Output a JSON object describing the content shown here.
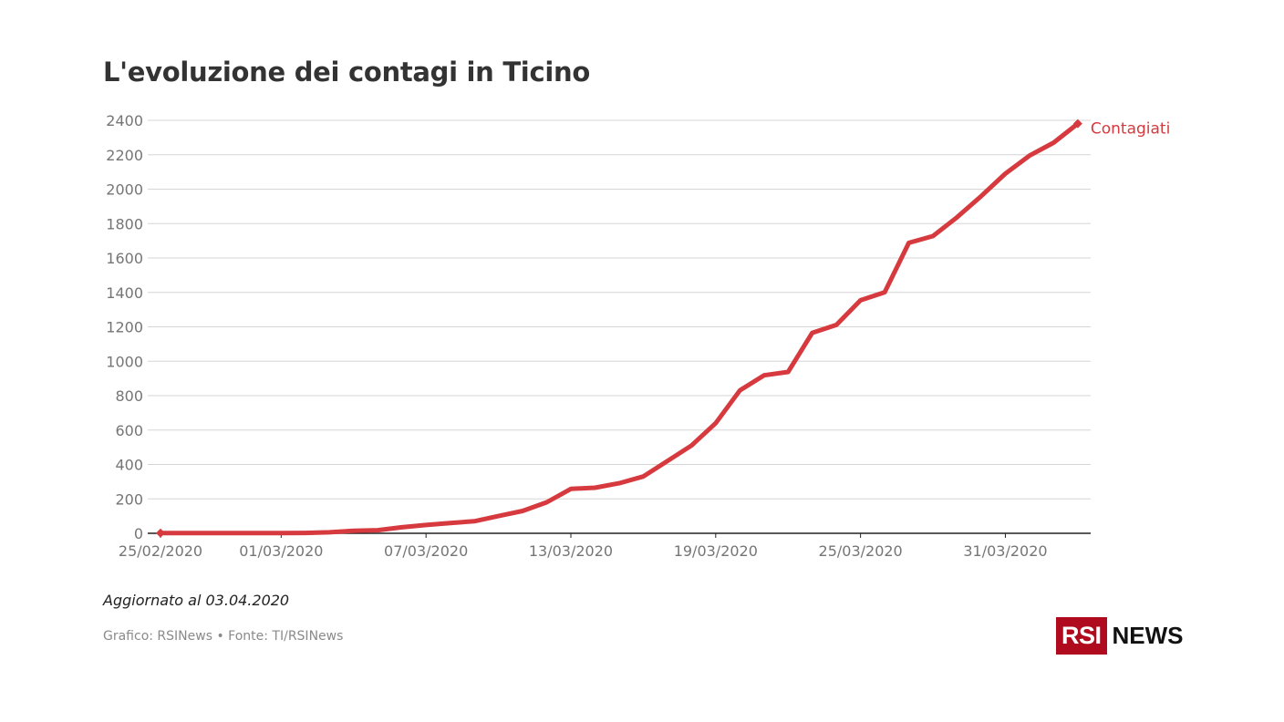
{
  "title": "L'evoluzione dei contagi in Ticino",
  "updated": "Aggiornato al 03.04.2020",
  "source": "Grafico: RSINews • Fonte: TI/RSINews",
  "logo": {
    "box": "RSI",
    "word": "NEWS"
  },
  "colors": {
    "series": "#d63a3e",
    "grid": "#d6d6d6",
    "axis_text": "#757575",
    "title": "#333333",
    "brand": "#af0a1e"
  },
  "chart_data": {
    "type": "line",
    "title": "L'evoluzione dei contagi in Ticino",
    "xlabel": "",
    "ylabel": "",
    "ylim": [
      0,
      2400
    ],
    "yticks": [
      0,
      200,
      400,
      600,
      800,
      1000,
      1200,
      1400,
      1600,
      1800,
      2000,
      2200,
      2400
    ],
    "xtick_labels": [
      "25/02/2020",
      "01/03/2020",
      "07/03/2020",
      "13/03/2020",
      "19/03/2020",
      "25/03/2020",
      "31/03/2020"
    ],
    "grid": "horizontal",
    "legend": "end-of-line label",
    "series": [
      {
        "name": "Contagiati",
        "color": "#d63a3e",
        "x": [
          "25/02/2020",
          "26/02/2020",
          "27/02/2020",
          "28/02/2020",
          "29/02/2020",
          "01/03/2020",
          "02/03/2020",
          "03/03/2020",
          "04/03/2020",
          "05/03/2020",
          "06/03/2020",
          "07/03/2020",
          "08/03/2020",
          "09/03/2020",
          "10/03/2020",
          "11/03/2020",
          "12/03/2020",
          "13/03/2020",
          "14/03/2020",
          "15/03/2020",
          "16/03/2020",
          "17/03/2020",
          "18/03/2020",
          "19/03/2020",
          "20/03/2020",
          "21/03/2020",
          "22/03/2020",
          "23/03/2020",
          "24/03/2020",
          "25/03/2020",
          "26/03/2020",
          "27/03/2020",
          "28/03/2020",
          "29/03/2020",
          "30/03/2020",
          "31/03/2020",
          "01/04/2020",
          "02/04/2020",
          "03/04/2020"
        ],
        "values": [
          1,
          1,
          1,
          1,
          1,
          1,
          2,
          6,
          15,
          18,
          35,
          48,
          60,
          70,
          100,
          130,
          180,
          258,
          265,
          291,
          330,
          420,
          510,
          640,
          830,
          918,
          938,
          1165,
          1211,
          1354,
          1401,
          1688,
          1727,
          1837,
          1960,
          2090,
          2195,
          2270,
          2381
        ]
      }
    ]
  }
}
